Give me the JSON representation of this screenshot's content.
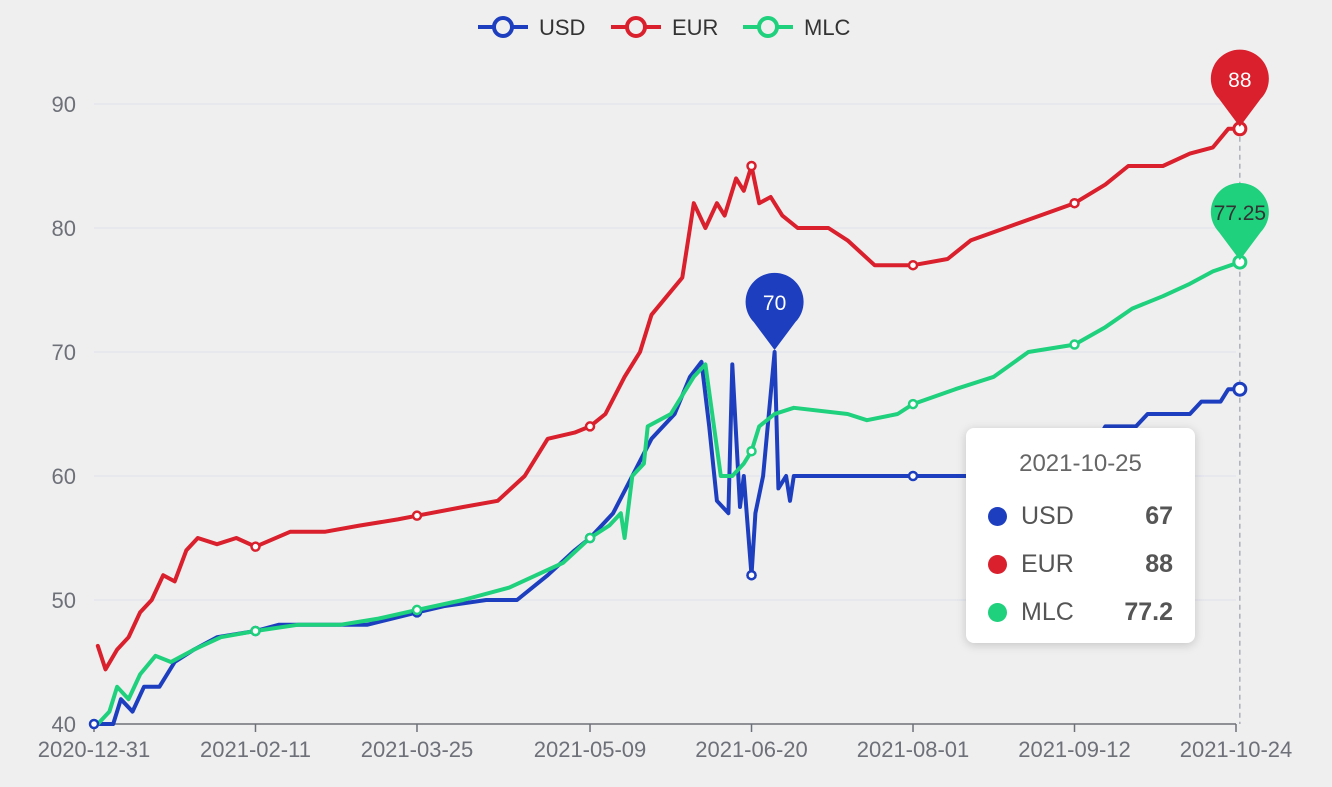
{
  "chart_data": {
    "type": "line",
    "xlabel": "",
    "ylabel": "",
    "ylim": [
      40,
      90
    ],
    "y_ticks": [
      "40",
      "50",
      "60",
      "70",
      "80",
      "90"
    ],
    "x_tick_labels": [
      "2020-12-31",
      "2021-02-11",
      "2021-03-25",
      "2021-05-09",
      "2021-06-20",
      "2021-08-01",
      "2021-09-12",
      "2021-10-24"
    ],
    "grid": "horizontal",
    "legend_position": "top-center",
    "series": [
      {
        "name": "USD",
        "color": "#1d3fbf",
        "points": [
          [
            "2020-12-31",
            40
          ],
          [
            "2021-01-05",
            40
          ],
          [
            "2021-01-07",
            42
          ],
          [
            "2021-01-10",
            41
          ],
          [
            "2021-01-13",
            43
          ],
          [
            "2021-01-17",
            43
          ],
          [
            "2021-01-21",
            45
          ],
          [
            "2021-01-26",
            46
          ],
          [
            "2021-02-01",
            47
          ],
          [
            "2021-02-11",
            47.5
          ],
          [
            "2021-02-17",
            48
          ],
          [
            "2021-03-01",
            48
          ],
          [
            "2021-03-12",
            48
          ],
          [
            "2021-03-25",
            49
          ],
          [
            "2021-04-01",
            49.5
          ],
          [
            "2021-04-12",
            50
          ],
          [
            "2021-04-20",
            50
          ],
          [
            "2021-04-28",
            52
          ],
          [
            "2021-05-05",
            54
          ],
          [
            "2021-05-09",
            55
          ],
          [
            "2021-05-15",
            57
          ],
          [
            "2021-05-20",
            60
          ],
          [
            "2021-05-25",
            63
          ],
          [
            "2021-05-31",
            65
          ],
          [
            "2021-06-04",
            68
          ],
          [
            "2021-06-07",
            69.2
          ],
          [
            "2021-06-09",
            64
          ],
          [
            "2021-06-11",
            58
          ],
          [
            "2021-06-14",
            57
          ],
          [
            "2021-06-15",
            69
          ],
          [
            "2021-06-17",
            57.5
          ],
          [
            "2021-06-18",
            60
          ],
          [
            "2021-06-20",
            52
          ],
          [
            "2021-06-21",
            57
          ],
          [
            "2021-06-23",
            60
          ],
          [
            "2021-06-26",
            70
          ],
          [
            "2021-06-27",
            59
          ],
          [
            "2021-06-29",
            60
          ],
          [
            "2021-06-30",
            58
          ],
          [
            "2021-07-01",
            60
          ],
          [
            "2021-08-01",
            60
          ],
          [
            "2021-08-20",
            60
          ],
          [
            "2021-09-13",
            60
          ],
          [
            "2021-09-20",
            64
          ],
          [
            "2021-09-28",
            64
          ],
          [
            "2021-10-01",
            65
          ],
          [
            "2021-10-12",
            65
          ],
          [
            "2021-10-15",
            66
          ],
          [
            "2021-10-20",
            66
          ],
          [
            "2021-10-22",
            67
          ],
          [
            "2021-10-25",
            67
          ]
        ]
      },
      {
        "name": "EUR",
        "color": "#d9202c",
        "points": [
          [
            "2021-01-01",
            46.3
          ],
          [
            "2021-01-03",
            44.4
          ],
          [
            "2021-01-06",
            46
          ],
          [
            "2021-01-09",
            47
          ],
          [
            "2021-01-12",
            49
          ],
          [
            "2021-01-15",
            50
          ],
          [
            "2021-01-18",
            52
          ],
          [
            "2021-01-21",
            51.5
          ],
          [
            "2021-01-24",
            54
          ],
          [
            "2021-01-27",
            55
          ],
          [
            "2021-02-01",
            54.5
          ],
          [
            "2021-02-06",
            55
          ],
          [
            "2021-02-11",
            54.3
          ],
          [
            "2021-02-20",
            55.5
          ],
          [
            "2021-03-01",
            55.5
          ],
          [
            "2021-03-10",
            56
          ],
          [
            "2021-03-20",
            56.5
          ],
          [
            "2021-03-25",
            56.8
          ],
          [
            "2021-04-06",
            57.5
          ],
          [
            "2021-04-15",
            58
          ],
          [
            "2021-04-22",
            60
          ],
          [
            "2021-04-28",
            63
          ],
          [
            "2021-05-05",
            63.5
          ],
          [
            "2021-05-09",
            64
          ],
          [
            "2021-05-13",
            65
          ],
          [
            "2021-05-18",
            68
          ],
          [
            "2021-05-22",
            70
          ],
          [
            "2021-05-25",
            73
          ],
          [
            "2021-05-29",
            74.5
          ],
          [
            "2021-06-02",
            76
          ],
          [
            "2021-06-04",
            80
          ],
          [
            "2021-06-05",
            82
          ],
          [
            "2021-06-08",
            80
          ],
          [
            "2021-06-11",
            82
          ],
          [
            "2021-06-13",
            81
          ],
          [
            "2021-06-16",
            84
          ],
          [
            "2021-06-18",
            83
          ],
          [
            "2021-06-20",
            85
          ],
          [
            "2021-06-22",
            82
          ],
          [
            "2021-06-25",
            82.5
          ],
          [
            "2021-06-28",
            81
          ],
          [
            "2021-07-02",
            80
          ],
          [
            "2021-07-10",
            80
          ],
          [
            "2021-07-15",
            79
          ],
          [
            "2021-07-22",
            77
          ],
          [
            "2021-08-01",
            77
          ],
          [
            "2021-08-10",
            77.5
          ],
          [
            "2021-08-16",
            79
          ],
          [
            "2021-08-25",
            80
          ],
          [
            "2021-09-03",
            81
          ],
          [
            "2021-09-12",
            82
          ],
          [
            "2021-09-20",
            83.5
          ],
          [
            "2021-09-26",
            85
          ],
          [
            "2021-10-05",
            85
          ],
          [
            "2021-10-12",
            86
          ],
          [
            "2021-10-18",
            86.5
          ],
          [
            "2021-10-22",
            88
          ],
          [
            "2021-10-25",
            88
          ]
        ]
      },
      {
        "name": "MLC",
        "color": "#1fd07d",
        "points": [
          [
            "2021-01-01",
            40
          ],
          [
            "2021-01-04",
            41
          ],
          [
            "2021-01-06",
            43
          ],
          [
            "2021-01-09",
            42
          ],
          [
            "2021-01-12",
            44
          ],
          [
            "2021-01-16",
            45.5
          ],
          [
            "2021-01-20",
            45
          ],
          [
            "2021-01-26",
            46
          ],
          [
            "2021-02-02",
            47
          ],
          [
            "2021-02-11",
            47.5
          ],
          [
            "2021-02-22",
            48
          ],
          [
            "2021-03-05",
            48
          ],
          [
            "2021-03-15",
            48.5
          ],
          [
            "2021-03-25",
            49.2
          ],
          [
            "2021-04-06",
            50
          ],
          [
            "2021-04-18",
            51
          ],
          [
            "2021-04-25",
            52
          ],
          [
            "2021-05-02",
            53
          ],
          [
            "2021-05-09",
            55
          ],
          [
            "2021-05-14",
            56
          ],
          [
            "2021-05-17",
            57
          ],
          [
            "2021-05-18",
            55
          ],
          [
            "2021-05-20",
            60
          ],
          [
            "2021-05-23",
            61
          ],
          [
            "2021-05-24",
            64
          ],
          [
            "2021-05-30",
            65
          ],
          [
            "2021-06-05",
            68
          ],
          [
            "2021-06-08",
            69
          ],
          [
            "2021-06-12",
            60
          ],
          [
            "2021-06-15",
            60
          ],
          [
            "2021-06-18",
            61
          ],
          [
            "2021-06-20",
            62
          ],
          [
            "2021-06-22",
            64
          ],
          [
            "2021-06-26",
            65
          ],
          [
            "2021-07-01",
            65.5
          ],
          [
            "2021-07-15",
            65
          ],
          [
            "2021-07-20",
            64.5
          ],
          [
            "2021-07-28",
            65
          ],
          [
            "2021-08-01",
            65.8
          ],
          [
            "2021-08-12",
            67
          ],
          [
            "2021-08-22",
            68
          ],
          [
            "2021-08-31",
            70
          ],
          [
            "2021-09-12",
            70.6
          ],
          [
            "2021-09-20",
            72
          ],
          [
            "2021-09-27",
            73.5
          ],
          [
            "2021-10-05",
            74.5
          ],
          [
            "2021-10-12",
            75.5
          ],
          [
            "2021-10-18",
            76.5
          ],
          [
            "2021-10-25",
            77.25
          ]
        ]
      }
    ],
    "markers": [
      {
        "series": "EUR",
        "x": "2021-10-25",
        "y": 88,
        "label": "88",
        "color": "#d9202c"
      },
      {
        "series": "MLC",
        "x": "2021-10-25",
        "y": 77.25,
        "label": "77.25",
        "color": "#1fd07d"
      },
      {
        "series": "USD",
        "x": "2021-06-26",
        "y": 70,
        "label": "70",
        "color": "#1d3fbf"
      }
    ],
    "tooltip": {
      "date": "2021-10-25",
      "rows": [
        {
          "name": "USD",
          "value": "67",
          "color": "#1d3fbf"
        },
        {
          "name": "EUR",
          "value": "88",
          "color": "#d9202c"
        },
        {
          "name": "MLC",
          "value": "77.2",
          "color": "#1fd07d"
        }
      ]
    }
  }
}
